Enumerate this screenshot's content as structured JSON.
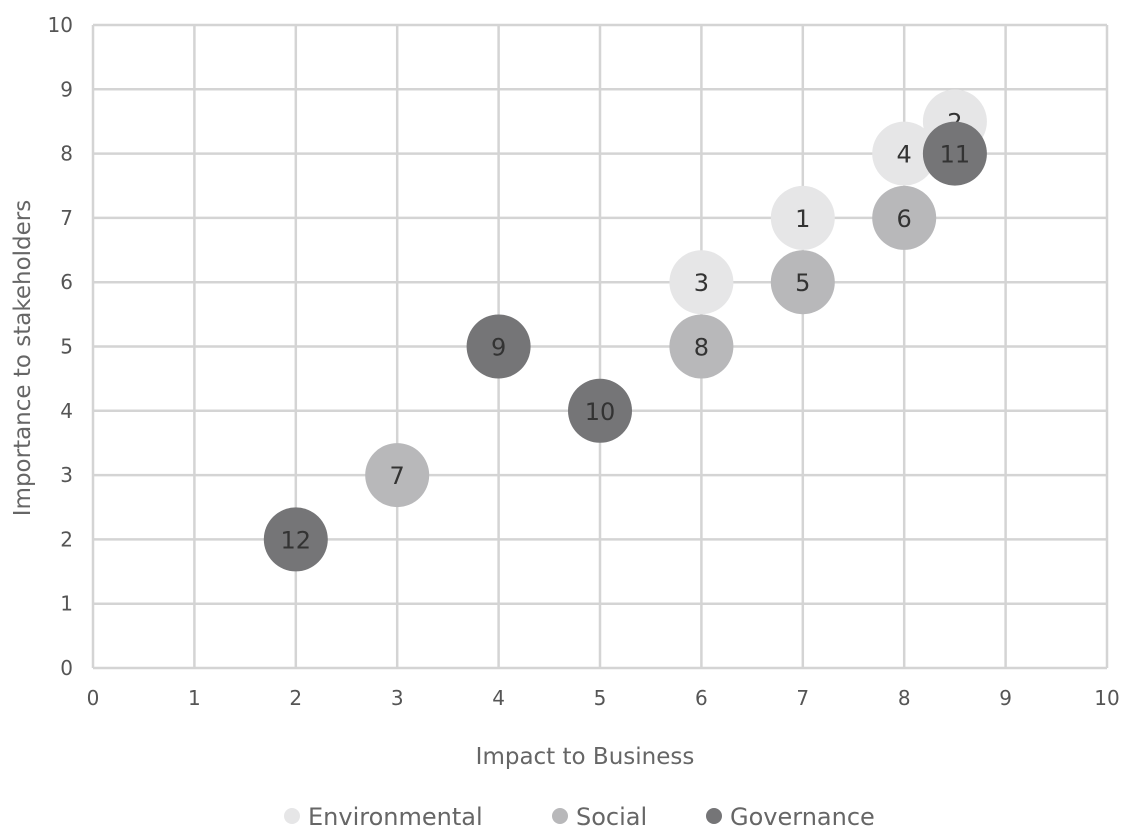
{
  "chart_data": {
    "type": "scatter",
    "xlabel": "Impact to Business",
    "ylabel": "Importance to stakeholders",
    "xlim": [
      0,
      10
    ],
    "ylim": [
      0,
      10
    ],
    "x_ticks": [
      "0",
      "1",
      "2",
      "3",
      "4",
      "5",
      "6",
      "7",
      "8",
      "9",
      "10"
    ],
    "y_ticks": [
      "0",
      "1",
      "2",
      "3",
      "4",
      "5",
      "6",
      "7",
      "8",
      "9",
      "10"
    ],
    "grid": true,
    "legend_position": "bottom",
    "series": [
      {
        "name": "Environmental",
        "color": "#e6e6e7",
        "points": [
          {
            "label": "1",
            "x": 7,
            "y": 7
          },
          {
            "label": "2",
            "x": 8.5,
            "y": 8.5
          },
          {
            "label": "3",
            "x": 6,
            "y": 6
          },
          {
            "label": "4",
            "x": 8,
            "y": 8
          }
        ]
      },
      {
        "name": "Social",
        "color": "#b8b8ba",
        "points": [
          {
            "label": "5",
            "x": 7,
            "y": 6
          },
          {
            "label": "6",
            "x": 8,
            "y": 7
          },
          {
            "label": "7",
            "x": 3,
            "y": 3
          },
          {
            "label": "8",
            "x": 6,
            "y": 5
          }
        ]
      },
      {
        "name": "Governance",
        "color": "#757577",
        "points": [
          {
            "label": "9",
            "x": 4,
            "y": 5
          },
          {
            "label": "10",
            "x": 5,
            "y": 4
          },
          {
            "label": "11",
            "x": 8.5,
            "y": 8
          },
          {
            "label": "12",
            "x": 2,
            "y": 2
          }
        ]
      }
    ]
  }
}
